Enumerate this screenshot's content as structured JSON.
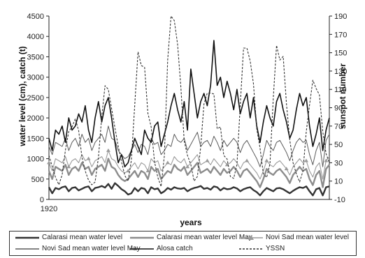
{
  "chart_data": {
    "type": "line",
    "x_start_label": "1920",
    "xlabel": "years",
    "ylabel_left": "water level (cm), catch (t)",
    "ylabel_right": "sunspot number",
    "ylim_left": [
      0,
      4500
    ],
    "ylim_right": [
      -10,
      190
    ],
    "yticks_left": [
      0,
      500,
      1000,
      1500,
      2000,
      2500,
      3000,
      3500,
      4000,
      4500
    ],
    "yticks_right": [
      -10,
      10,
      30,
      50,
      70,
      90,
      110,
      130,
      150,
      170,
      190
    ],
    "x": [
      1920,
      1921,
      1922,
      1923,
      1924,
      1925,
      1926,
      1927,
      1928,
      1929,
      1930,
      1931,
      1932,
      1933,
      1934,
      1935,
      1936,
      1937,
      1938,
      1939,
      1940,
      1941,
      1942,
      1943,
      1944,
      1945,
      1946,
      1947,
      1948,
      1949,
      1950,
      1951,
      1952,
      1953,
      1954,
      1955,
      1956,
      1957,
      1958,
      1959,
      1960,
      1961,
      1962,
      1963,
      1964,
      1965,
      1966,
      1967,
      1968,
      1969,
      1970,
      1971,
      1972,
      1973,
      1974,
      1975,
      1976,
      1977,
      1978,
      1979,
      1980,
      1981,
      1982,
      1983,
      1984,
      1985,
      1986,
      1987,
      1988,
      1989,
      1990,
      1991,
      1992,
      1993,
      1994,
      1995,
      1996,
      1997,
      1998,
      1999,
      2000,
      2001,
      2002,
      2003,
      2004,
      2005
    ],
    "series": [
      {
        "name": "Calarasi mean water level",
        "axis": "left",
        "color": "#333333",
        "width": 2.4,
        "dash": "",
        "values": [
          300,
          150,
          280,
          250,
          300,
          320,
          200,
          280,
          300,
          220,
          260,
          300,
          320,
          200,
          280,
          300,
          330,
          290,
          380,
          260,
          400,
          330,
          250,
          200,
          120,
          150,
          280,
          200,
          280,
          260,
          150,
          300,
          250,
          270,
          150,
          200,
          280,
          240,
          300,
          270,
          260,
          280,
          200,
          250,
          280,
          300,
          330,
          260,
          280,
          240,
          320,
          300,
          220,
          280,
          250,
          260,
          300,
          270,
          200,
          250,
          280,
          300,
          230,
          180,
          100,
          200,
          280,
          240,
          200,
          270,
          280,
          250,
          200,
          150,
          210,
          260,
          300,
          280,
          320,
          200,
          100,
          250,
          280,
          100,
          300,
          320
        ]
      },
      {
        "name": "Calarasi mean water level May",
        "axis": "left",
        "color": "#8c8c8c",
        "width": 2.4,
        "dash": "",
        "values": [
          700,
          500,
          800,
          750,
          700,
          850,
          600,
          750,
          800,
          700,
          900,
          750,
          800,
          600,
          750,
          800,
          850,
          700,
          1000,
          800,
          750,
          600,
          500,
          450,
          500,
          600,
          700,
          550,
          700,
          650,
          500,
          800,
          700,
          750,
          500,
          600,
          700,
          650,
          850,
          750,
          700,
          800,
          600,
          700,
          800,
          900,
          650,
          700,
          750,
          650,
          800,
          700,
          600,
          750,
          650,
          700,
          800,
          700,
          550,
          700,
          750,
          650,
          550,
          450,
          300,
          500,
          750,
          650,
          600,
          700,
          750,
          650,
          550,
          400,
          600,
          700,
          800,
          700,
          750,
          500,
          350,
          600,
          700,
          300,
          750,
          850
        ]
      },
      {
        "name": "Novi Sad mean water level",
        "axis": "left",
        "color": "#9a9a9a",
        "width": 1.1,
        "dash": "",
        "marker": "triangle",
        "values": [
          900,
          700,
          1000,
          950,
          900,
          1050,
          800,
          950,
          1000,
          900,
          1100,
          950,
          1000,
          800,
          950,
          1000,
          1050,
          900,
          1200,
          1000,
          950,
          800,
          700,
          650,
          700,
          800,
          900,
          750,
          900,
          850,
          700,
          1000,
          900,
          950,
          700,
          800,
          900,
          850,
          1050,
          950,
          900,
          1000,
          800,
          900,
          1000,
          1100,
          850,
          900,
          950,
          850,
          1000,
          900,
          800,
          950,
          850,
          900,
          1000,
          900,
          750,
          900,
          950,
          850,
          750,
          650,
          500,
          700,
          950,
          850,
          800,
          900,
          950,
          850,
          750,
          600,
          800,
          900,
          1000,
          900,
          950,
          700,
          550,
          800,
          900,
          500,
          950,
          1050
        ]
      },
      {
        "name": "Novi Sad mean water level May",
        "axis": "left",
        "color": "#5a5a5a",
        "width": 1,
        "dash": "",
        "values": [
          1300,
          1100,
          1400,
          1350,
          1300,
          1500,
          1200,
          1400,
          1500,
          1300,
          1600,
          1400,
          1500,
          1200,
          1400,
          1500,
          1600,
          1400,
          1800,
          1500,
          1450,
          1200,
          1100,
          1000,
          1050,
          1200,
          1350,
          1150,
          1350,
          1300,
          1100,
          1500,
          1350,
          1400,
          1100,
          1200,
          1350,
          1300,
          1600,
          1450,
          1400,
          1500,
          1200,
          1350,
          1500,
          1650,
          1300,
          1400,
          1450,
          1300,
          1550,
          1400,
          1200,
          1450,
          1300,
          1400,
          1500,
          1400,
          1150,
          1350,
          1450,
          1300,
          1150,
          1000,
          800,
          1100,
          1450,
          1300,
          1200,
          1400,
          1450,
          1300,
          1150,
          950,
          1200,
          1400,
          1500,
          1400,
          1450,
          1100,
          850,
          1200,
          1400,
          800,
          1450,
          1600
        ]
      },
      {
        "name": "Alosa catch",
        "axis": "left",
        "color": "#111111",
        "width": 1.6,
        "dash": "",
        "values": [
          1500,
          1200,
          1700,
          1600,
          1800,
          1400,
          2000,
          1700,
          1800,
          2100,
          1900,
          2300,
          1700,
          1400,
          2000,
          2400,
          1900,
          2300,
          2500,
          2000,
          1400,
          900,
          1100,
          800,
          900,
          1200,
          1500,
          1300,
          1100,
          1700,
          1500,
          1400,
          1800,
          1900,
          1300,
          1600,
          1900,
          2300,
          2600,
          2200,
          1900,
          2400,
          1700,
          3200,
          2600,
          2000,
          2400,
          2600,
          2300,
          2800,
          3900,
          2800,
          3000,
          2500,
          2900,
          2600,
          2200,
          2700,
          2100,
          2400,
          2600,
          2000,
          2500,
          1800,
          1400,
          1900,
          2300,
          2000,
          1800,
          2400,
          2600,
          2200,
          1900,
          1500,
          1700,
          2200,
          2600,
          2300,
          2500,
          1800,
          1300,
          1600,
          2000,
          1200,
          1700,
          2000
        ]
      },
      {
        "name": "YSSN",
        "axis": "right",
        "color": "#333333",
        "width": 1.1,
        "dash": "3,2",
        "values": [
          38,
          26,
          14,
          6,
          17,
          44,
          64,
          69,
          78,
          65,
          36,
          21,
          11,
          6,
          9,
          36,
          80,
          114,
          110,
          89,
          68,
          48,
          31,
          16,
          10,
          33,
          93,
          151,
          136,
          134,
          84,
          69,
          31,
          14,
          4,
          38,
          142,
          190,
          185,
          159,
          112,
          54,
          38,
          28,
          10,
          15,
          47,
          94,
          106,
          106,
          105,
          67,
          69,
          38,
          34,
          15,
          13,
          28,
          93,
          155,
          155,
          141,
          116,
          67,
          46,
          18,
          14,
          29,
          100,
          158,
          142,
          146,
          94,
          55,
          30,
          18,
          9,
          21,
          64,
          93,
          120,
          111,
          104,
          64,
          40,
          30
        ]
      }
    ]
  }
}
